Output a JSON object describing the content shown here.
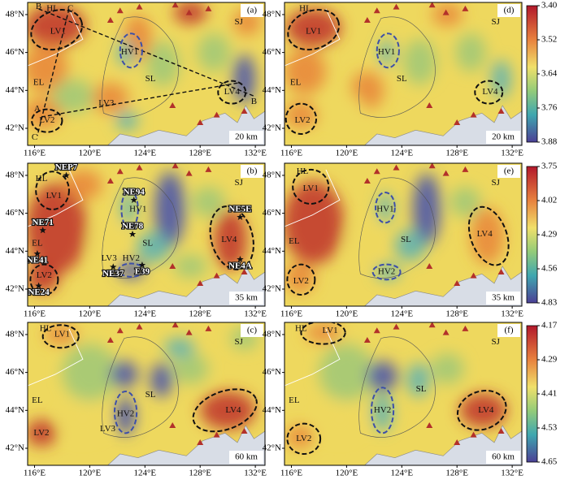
{
  "panels": [
    {
      "label": "(a)",
      "depth": "20 km",
      "texts": [
        "B",
        "C",
        "HL",
        "LV1",
        "HV1",
        "SL",
        "EL",
        "LV3",
        "LV4",
        "B",
        "A",
        "LV2",
        "C",
        "SJ"
      ]
    },
    {
      "label": "(b)",
      "depth": "35 km",
      "texts": [
        "HL",
        "LV1",
        "HV1",
        "SL",
        "EL",
        "LV3",
        "HV2",
        "LV2",
        "LV4",
        "SJ",
        "NEP7",
        "NE71",
        "NE94",
        "NE78",
        "NE41",
        "NE37",
        "E39",
        "NE5E",
        "NE4A",
        "NE24"
      ]
    },
    {
      "label": "(c)",
      "depth": "60 km",
      "texts": [
        "HL",
        "LV1",
        "SL",
        "EL",
        "HV2",
        "LV3",
        "LV4",
        "LV2",
        "SJ"
      ]
    },
    {
      "label": "(d)",
      "depth": "20 km",
      "texts": [
        "HL",
        "LV1",
        "HV1",
        "SL",
        "EL",
        "LV2",
        "LV4",
        "SJ"
      ]
    },
    {
      "label": "(e)",
      "depth": "35 km",
      "texts": [
        "HL",
        "LV1",
        "HV1",
        "SL",
        "EL",
        "LV2",
        "HV2",
        "LV4",
        "SJ"
      ]
    },
    {
      "label": "(f)",
      "depth": "60 km",
      "texts": [
        "HL",
        "LV1",
        "SL",
        "EL",
        "HV2",
        "LV4",
        "LV2",
        "SJ"
      ]
    }
  ],
  "lat_labels": [
    "48°N",
    "46°N",
    "44°N",
    "42°N"
  ],
  "lon_labels": [
    "116°E",
    "120°E",
    "124°E",
    "128°E",
    "132°E"
  ],
  "colorbars": [
    {
      "ticks": [
        "3.40",
        "3.52",
        "3.64",
        "3.76",
        "3.88"
      ]
    },
    {
      "ticks": [
        "3.75",
        "4.02",
        "4.29",
        "4.56",
        "4.83"
      ]
    },
    {
      "ticks": [
        "4.17",
        "4.29",
        "4.41",
        "4.53",
        "4.65"
      ]
    }
  ]
}
